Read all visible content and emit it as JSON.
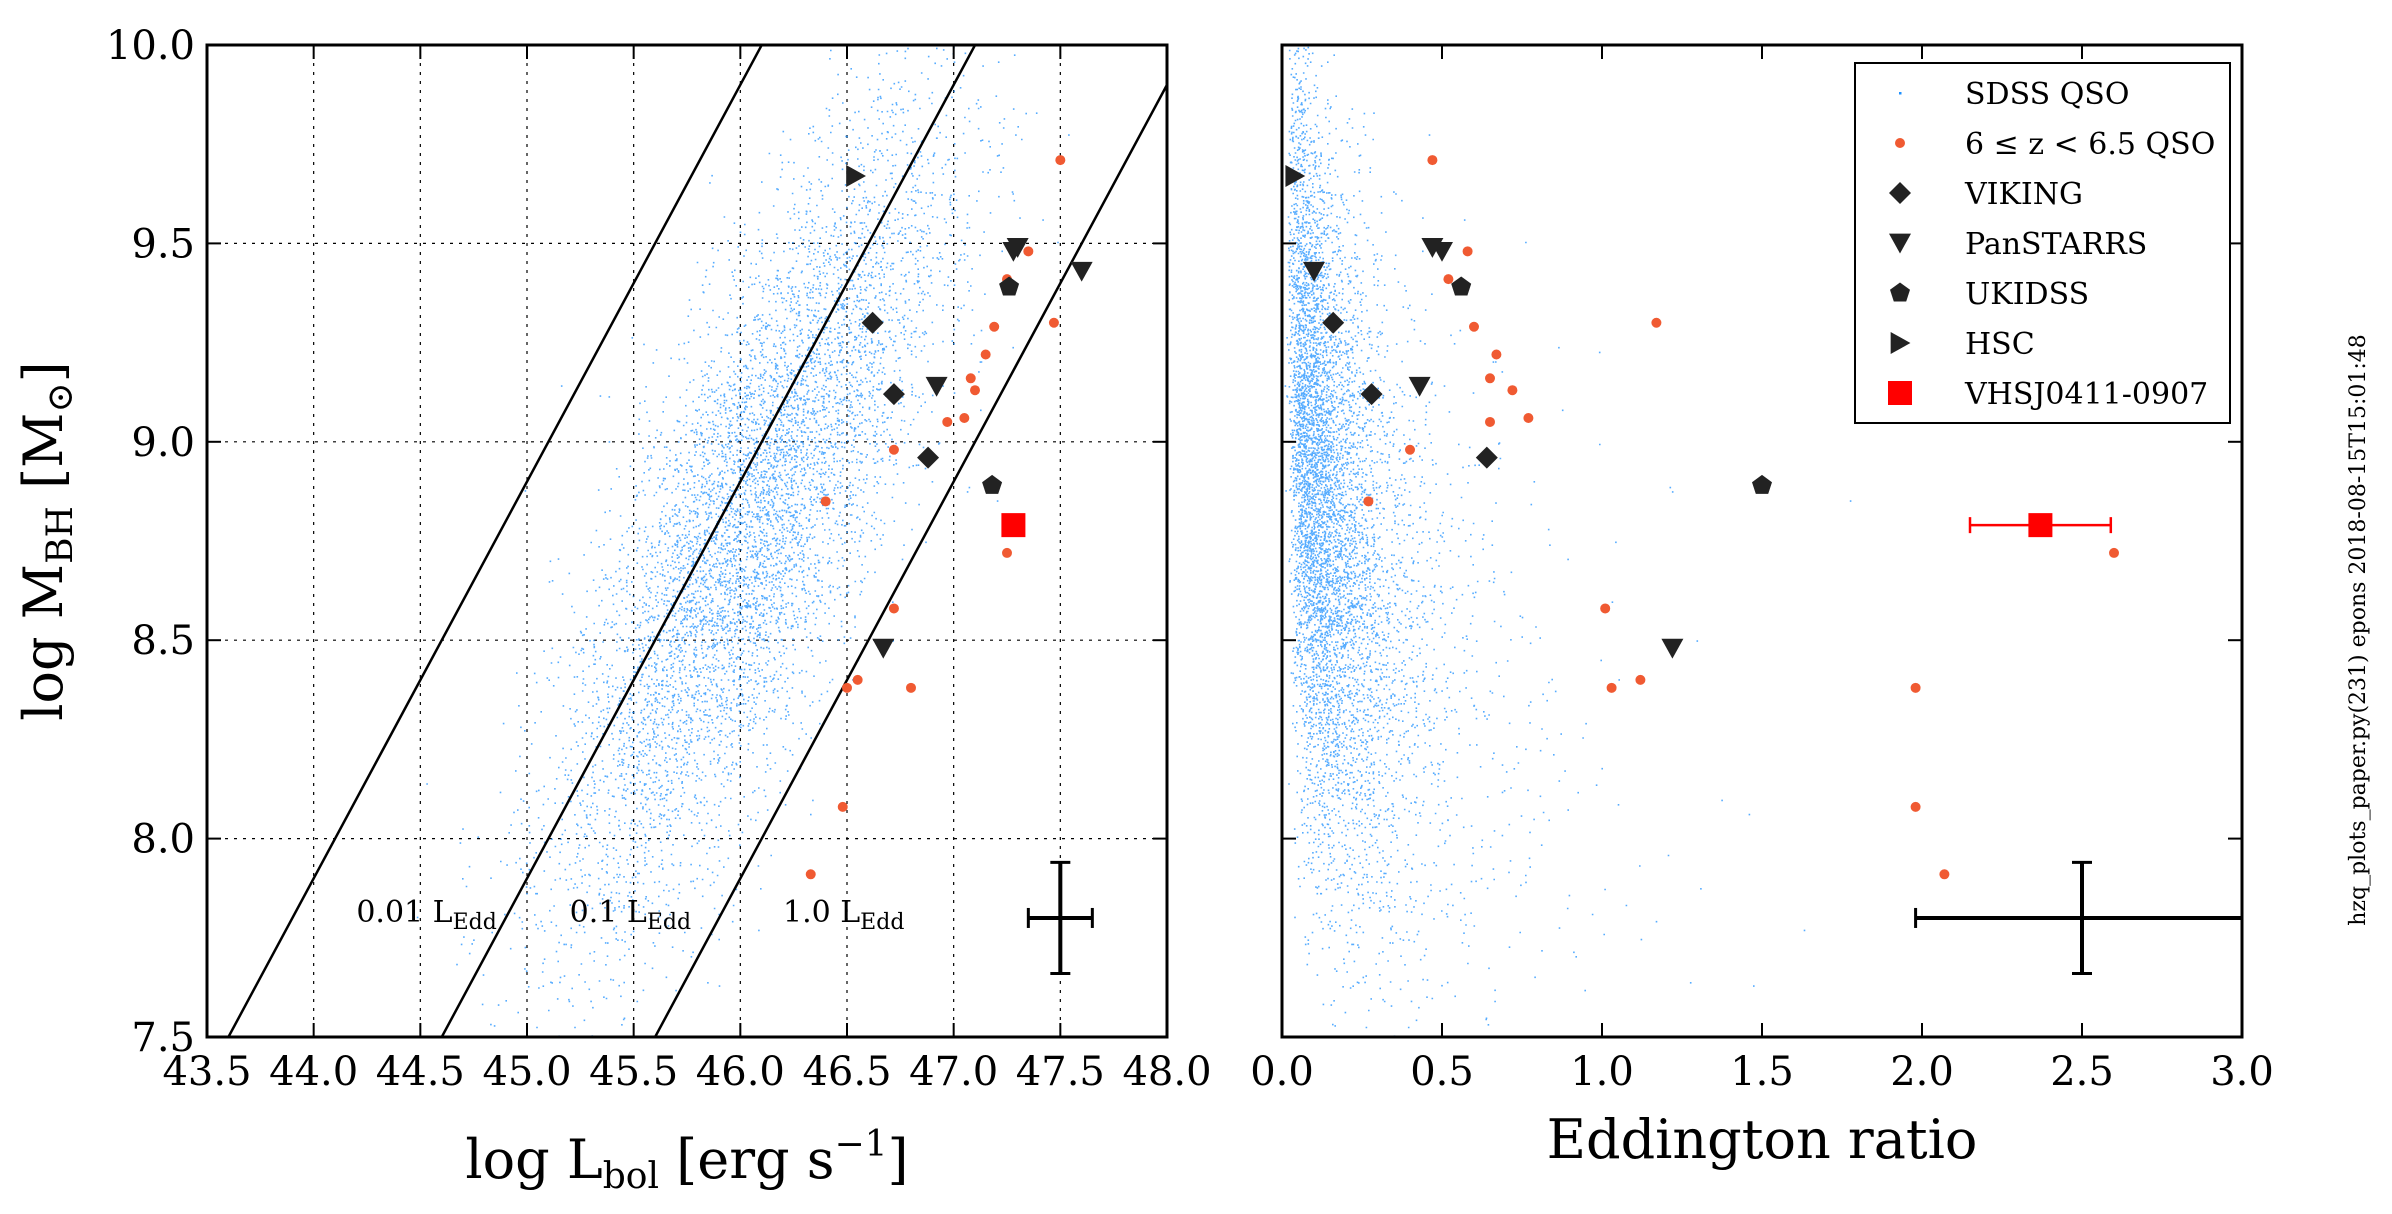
{
  "colors": {
    "sdss": "#1e90ff",
    "hzq": "#f05a32",
    "marker": "#222222",
    "vhs": "#ff0000",
    "grid": "#000000"
  },
  "stamp": "hzq_plots_paper.py(231) epons 2018-08-15T15:01:48",
  "chart_data": [
    {
      "type": "scatter",
      "panel": "left",
      "xlabel": "log L",
      "xlabel_sub": "bol",
      "xlabel_tail": " [erg s",
      "xlabel_sup": "−1",
      "xlabel_end": "]",
      "ylabel": "log M",
      "ylabel_sub": "BH",
      "ylabel_tail": " [M",
      "ylabel_sub2": "⊙",
      "ylabel_end": "]",
      "xlim": [
        43.5,
        48.0
      ],
      "ylim": [
        7.5,
        10.0
      ],
      "xticks": [
        "43.5",
        "44.0",
        "44.5",
        "45.0",
        "45.5",
        "46.0",
        "46.5",
        "47.0",
        "47.5",
        "48.0"
      ],
      "yticks": [
        "7.5",
        "8.0",
        "8.5",
        "9.0",
        "9.5",
        "10.0"
      ],
      "grid": true,
      "eddington_lines": [
        {
          "label": "0.01 L",
          "sub": "Edd",
          "ratio": 0.01,
          "label_x": 44.2,
          "label_y": 7.79
        },
        {
          "label": "0.1 L",
          "sub": "Edd",
          "ratio": 0.1,
          "label_x": 45.2,
          "label_y": 7.79
        },
        {
          "label": "1.0 L",
          "sub": "Edd",
          "ratio": 1.0,
          "label_x": 46.2,
          "label_y": 7.79
        }
      ],
      "sdss_cloud": {
        "name": "SDSS QSO",
        "x_mean": 46.05,
        "x_sd": 0.45,
        "y_mean": 8.8,
        "y_sd": 0.5,
        "correlation": 0.78,
        "n_points": 9000
      },
      "series": [
        {
          "name": "6 ≤ z < 6.5 QSO",
          "marker": "dot",
          "points": [
            [
              47.5,
              9.71
            ],
            [
              47.35,
              9.48
            ],
            [
              47.25,
              9.41
            ],
            [
              47.19,
              9.29
            ],
            [
              47.47,
              9.3
            ],
            [
              47.15,
              9.22
            ],
            [
              47.08,
              9.16
            ],
            [
              47.1,
              9.13
            ],
            [
              46.97,
              9.05
            ],
            [
              47.05,
              9.06
            ],
            [
              46.72,
              8.98
            ],
            [
              46.4,
              8.85
            ],
            [
              47.25,
              8.72
            ],
            [
              46.72,
              8.58
            ],
            [
              46.55,
              8.4
            ],
            [
              46.5,
              8.38
            ],
            [
              46.8,
              8.38
            ],
            [
              46.48,
              8.08
            ],
            [
              46.33,
              7.91
            ]
          ]
        },
        {
          "name": "VIKING",
          "marker": "diamond",
          "points": [
            [
              46.62,
              9.3
            ],
            [
              46.72,
              9.12
            ],
            [
              46.88,
              8.96
            ]
          ]
        },
        {
          "name": "PanSTARRS",
          "marker": "triangle-down",
          "points": [
            [
              47.3,
              9.49
            ],
            [
              47.28,
              9.48
            ],
            [
              47.6,
              9.43
            ],
            [
              46.92,
              9.14
            ],
            [
              46.67,
              8.48
            ]
          ]
        },
        {
          "name": "UKIDSS",
          "marker": "pentagon",
          "points": [
            [
              47.26,
              9.39
            ],
            [
              47.18,
              8.89
            ]
          ]
        },
        {
          "name": "HSC",
          "marker": "triangle-right",
          "points": [
            [
              46.54,
              9.67
            ]
          ]
        },
        {
          "name": "VHSJ0411-0907",
          "marker": "square",
          "points": [
            [
              47.28,
              8.79
            ]
          ]
        }
      ],
      "typical_error": {
        "x": 47.5,
        "y": 7.8,
        "xerr": 0.15,
        "yerr": 0.14
      }
    },
    {
      "type": "scatter",
      "panel": "right",
      "xlabel": "Eddington ratio",
      "xlim": [
        0.0,
        3.0
      ],
      "ylim": [
        7.5,
        10.0
      ],
      "xticks": [
        "0.0",
        "0.5",
        "1.0",
        "1.5",
        "2.0",
        "2.5",
        "3.0"
      ],
      "grid": false,
      "sdss_cloud": {
        "name": "SDSS QSO",
        "n_points": 9000
      },
      "series": [
        {
          "name": "6 ≤ z < 6.5 QSO",
          "marker": "dot",
          "points": [
            [
              0.47,
              9.71
            ],
            [
              0.58,
              9.48
            ],
            [
              0.52,
              9.41
            ],
            [
              0.6,
              9.29
            ],
            [
              1.17,
              9.3
            ],
            [
              0.67,
              9.22
            ],
            [
              0.65,
              9.16
            ],
            [
              0.72,
              9.13
            ],
            [
              0.65,
              9.05
            ],
            [
              0.77,
              9.06
            ],
            [
              0.4,
              8.98
            ],
            [
              0.27,
              8.85
            ],
            [
              2.6,
              8.72
            ],
            [
              1.01,
              8.58
            ],
            [
              1.12,
              8.4
            ],
            [
              1.03,
              8.38
            ],
            [
              1.98,
              8.38
            ],
            [
              1.98,
              8.08
            ],
            [
              2.07,
              7.91
            ]
          ]
        },
        {
          "name": "VIKING",
          "marker": "diamond",
          "points": [
            [
              0.16,
              9.3
            ],
            [
              0.28,
              9.12
            ],
            [
              0.64,
              8.96
            ]
          ]
        },
        {
          "name": "PanSTARRS",
          "marker": "triangle-down",
          "points": [
            [
              0.47,
              9.49
            ],
            [
              0.5,
              9.48
            ],
            [
              0.1,
              9.43
            ],
            [
              0.43,
              9.14
            ],
            [
              1.22,
              8.48
            ]
          ]
        },
        {
          "name": "UKIDSS",
          "marker": "pentagon",
          "points": [
            [
              0.56,
              9.39
            ],
            [
              1.5,
              8.89
            ]
          ]
        },
        {
          "name": "HSC",
          "marker": "triangle-right",
          "points": [
            [
              0.04,
              9.67
            ]
          ]
        },
        {
          "name": "VHSJ0411-0907",
          "marker": "square",
          "points": [
            [
              2.37,
              8.79
            ]
          ],
          "xerr": [
            0.22,
            0.22
          ]
        }
      ],
      "typical_error": {
        "x": 2.5,
        "y": 7.8,
        "xerr_left": 0.52,
        "xerr_right": 0.5,
        "yerr": 0.14
      },
      "legend": {
        "placement": "top-right",
        "entries": [
          {
            "label": "SDSS QSO",
            "marker": "tiny-dot"
          },
          {
            "label": "6 ≤ z < 6.5 QSO",
            "marker": "dot"
          },
          {
            "label": "VIKING",
            "marker": "diamond"
          },
          {
            "label": "PanSTARRS",
            "marker": "triangle-down"
          },
          {
            "label": "UKIDSS",
            "marker": "pentagon"
          },
          {
            "label": "HSC",
            "marker": "triangle-right"
          },
          {
            "label": "VHSJ0411-0907",
            "marker": "square"
          }
        ]
      }
    }
  ]
}
